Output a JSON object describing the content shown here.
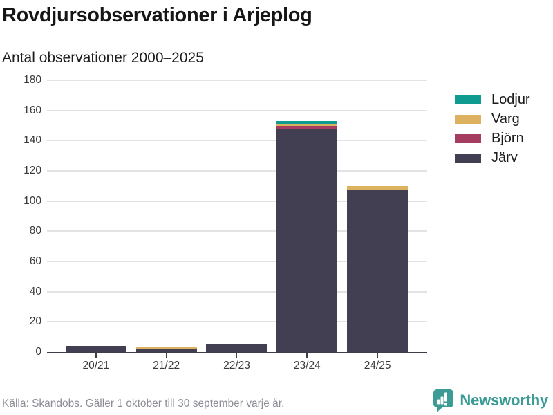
{
  "chart_data": {
    "type": "bar",
    "stacked": true,
    "title": "Rovdjursobservationer i Arjeplog",
    "subtitle": "Antal observationer 2000–2025",
    "categories": [
      "20/21",
      "21/22",
      "22/23",
      "23/24",
      "24/25"
    ],
    "series": [
      {
        "name": "Lodjur",
        "color": "#109b90",
        "values": [
          0,
          0,
          0,
          2,
          0
        ]
      },
      {
        "name": "Varg",
        "color": "#dcb15f",
        "values": [
          0,
          1,
          0,
          1,
          3
        ]
      },
      {
        "name": "Björn",
        "color": "#a53d60",
        "values": [
          0,
          0,
          0,
          2,
          0
        ]
      },
      {
        "name": "Järv",
        "color": "#433f52",
        "values": [
          4,
          2,
          5,
          148,
          107
        ]
      }
    ],
    "totals": [
      4,
      3,
      5,
      153,
      110
    ],
    "ylim": [
      0,
      180
    ],
    "yticks": [
      0,
      20,
      40,
      60,
      80,
      100,
      120,
      140,
      160,
      180
    ],
    "grid": true,
    "legend_position": "right",
    "axis_color": "#3f3d4a",
    "grid_color": "#e3e3e3"
  },
  "footer": {
    "source": "Källa: Skandobs. Gäller 1 oktober till 30 september varje år.",
    "brand": "Newsworthy",
    "brand_color": "#3b9c95"
  }
}
